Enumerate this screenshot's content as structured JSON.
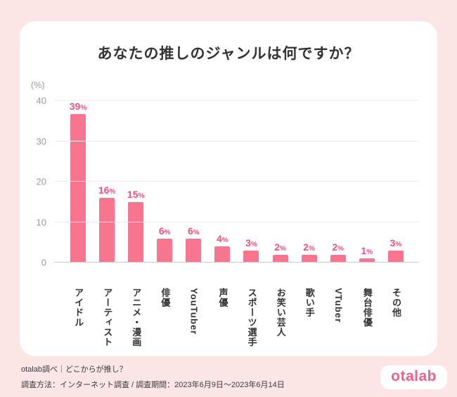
{
  "chart_data": {
    "type": "bar",
    "title": "あなたの推しのジャンルは何ですか？",
    "categories": [
      "アイドル",
      "アーティスト",
      "アニメ・漫画",
      "俳優",
      "YouTuber",
      "声優",
      "スポーツ選手",
      "お笑い芸人",
      "歌い手",
      "VTuber",
      "舞台俳優",
      "その他"
    ],
    "values": [
      39,
      16,
      15,
      6,
      6,
      4,
      3,
      2,
      2,
      2,
      1,
      3
    ],
    "value_suffix": "%",
    "xlabel": "",
    "ylabel": "(%)",
    "ylim": [
      0,
      40
    ],
    "yticks": [
      0,
      10,
      20,
      30,
      40
    ],
    "grid": true,
    "legend": false,
    "bar_color": "#f8758f",
    "value_label_color": "#f2507c"
  },
  "footer": {
    "line1": "otalab調べ｜どこからが推し？",
    "line2": "調査方法：インターネット調査 / 調査期間：2023年6月9日～2023年6月14日",
    "logo": "otalab"
  },
  "colors": {
    "page_background": "#fbe5e5",
    "card_background": "#ffffff",
    "title_text": "#333333",
    "axis_text": "#9a9a9a"
  }
}
